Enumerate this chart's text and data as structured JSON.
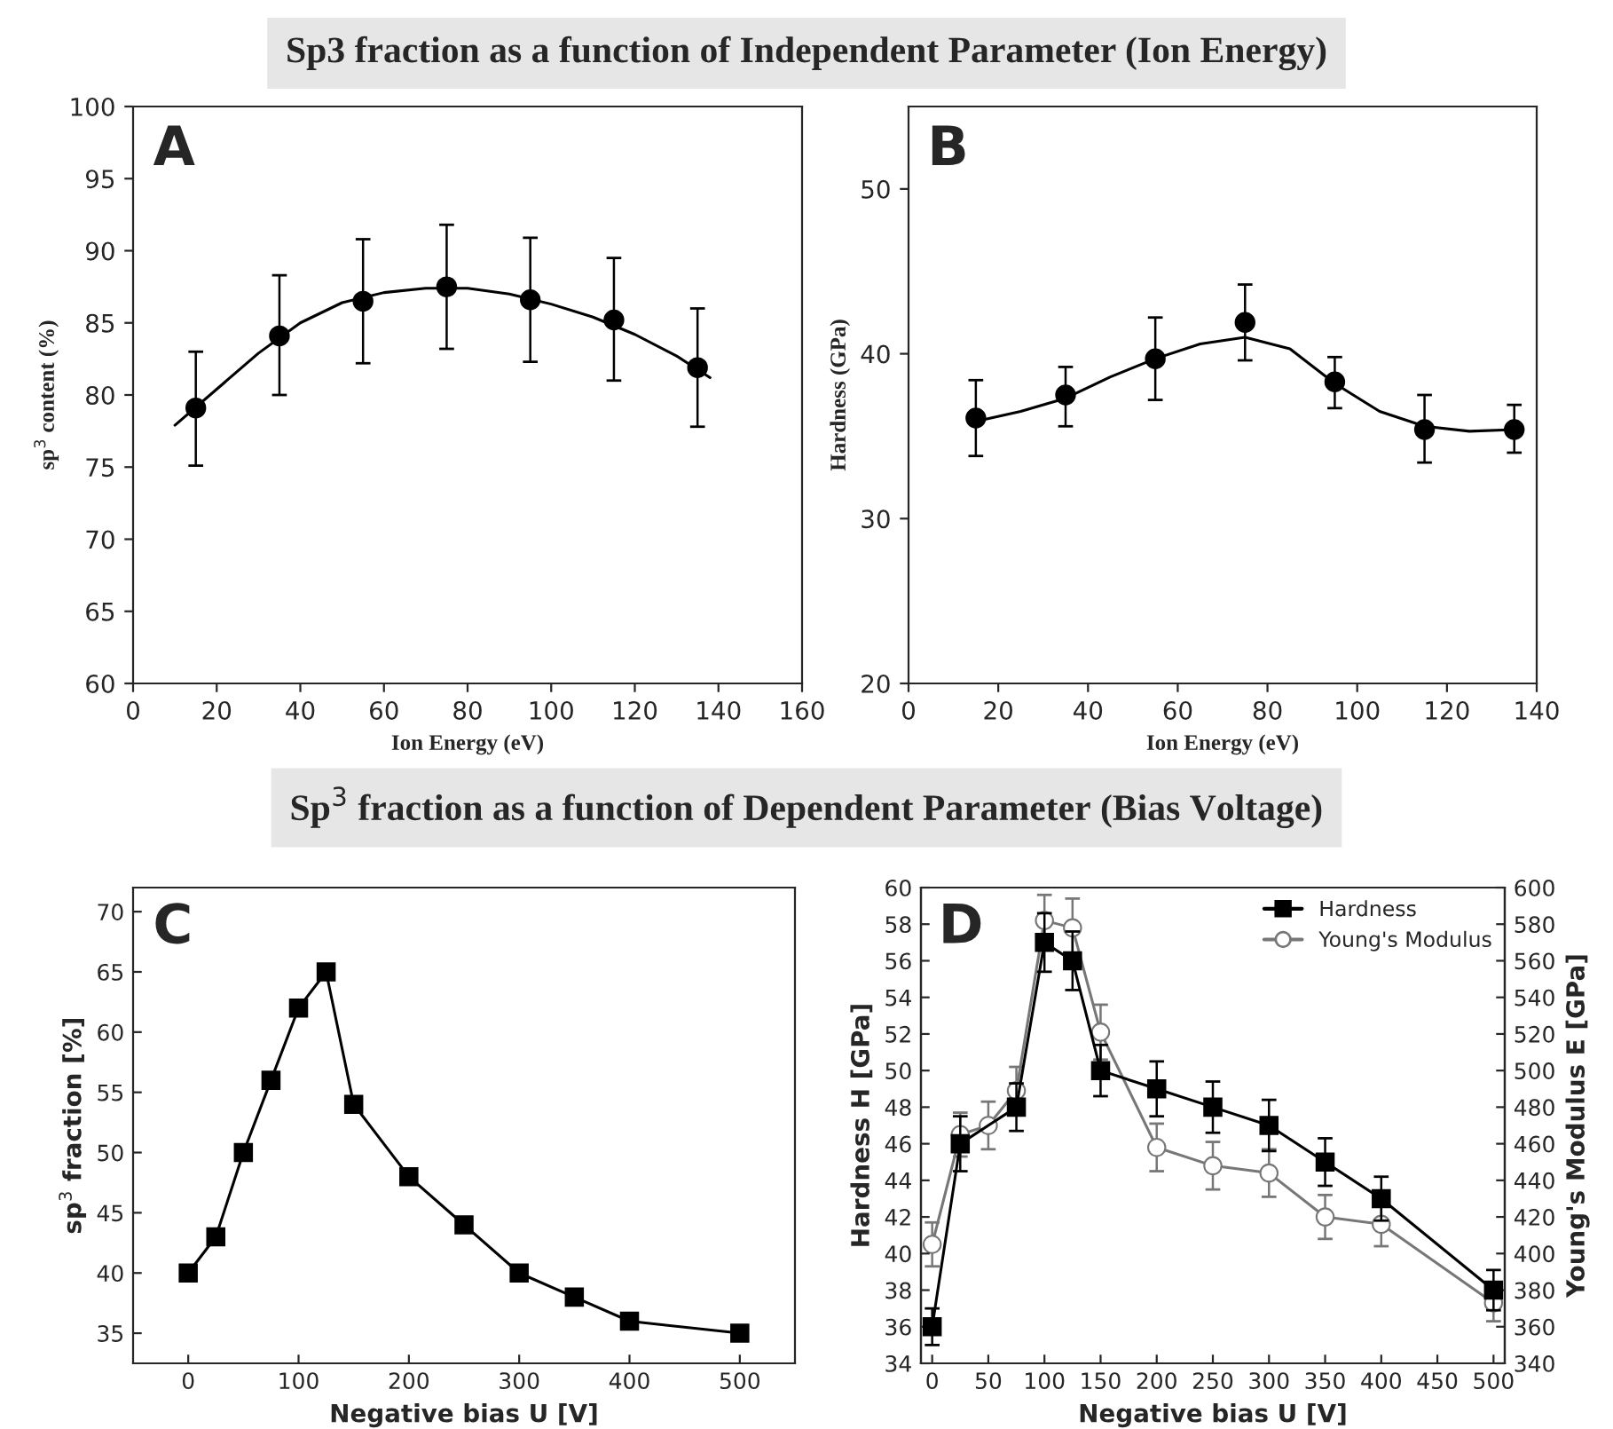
{
  "chart_data": [
    {
      "type": "scatter",
      "title": "Sp3 fraction as a function of Independent Parameter (Ion Energy)",
      "xlabel": "Ion Energy (eV)",
      "ylabel": "sp$^{3}$ content (%)",
      "xlim": [
        0,
        160
      ],
      "ylim": [
        60,
        100
      ],
      "xticks": [
        0,
        20,
        40,
        60,
        80,
        100,
        120,
        140,
        160
      ],
      "yticks": [
        60,
        65,
        70,
        75,
        80,
        85,
        90,
        95,
        100
      ],
      "annotations": [
        "A"
      ],
      "series": [
        {
          "type": "scatter",
          "color": "#000000",
          "marker": "circle",
          "x": [
            15,
            35,
            55,
            75,
            95,
            115,
            135
          ],
          "values": [
            79.1,
            84.1,
            86.5,
            87.5,
            86.6,
            85.2,
            81.9
          ],
          "errors": [
            [
              75.1,
              83.0
            ],
            [
              80.0,
              88.3
            ],
            [
              82.2,
              90.8
            ],
            [
              83.2,
              91.8
            ],
            [
              82.3,
              90.9
            ],
            [
              81.0,
              89.5
            ],
            [
              77.8,
              86.0
            ]
          ]
        },
        {
          "type": "line",
          "color": "#000000",
          "marker": "none",
          "x": [
            10,
            20,
            30,
            40,
            50,
            60,
            70,
            80,
            90,
            100,
            110,
            120,
            130,
            138
          ],
          "values": [
            77.9,
            80.4,
            82.9,
            85.0,
            86.4,
            87.1,
            87.4,
            87.4,
            87.0,
            86.3,
            85.4,
            84.2,
            82.7,
            81.2
          ]
        }
      ]
    },
    {
      "type": "scatter",
      "xlabel": "Ion Energy (eV)",
      "ylabel": "Hardness (GPa)",
      "xlim": [
        0,
        140
      ],
      "ylim": [
        20,
        55
      ],
      "xticks": [
        0,
        20,
        40,
        60,
        80,
        100,
        120,
        140
      ],
      "yticks": [
        20,
        30,
        40,
        50
      ],
      "annotations": [
        "B"
      ],
      "series": [
        {
          "type": "scatter",
          "color": "#000000",
          "marker": "circle",
          "x": [
            15,
            35,
            55,
            75,
            95,
            115,
            135
          ],
          "values": [
            36.1,
            37.5,
            39.7,
            41.9,
            38.3,
            35.4,
            35.4
          ],
          "errors": [
            [
              33.8,
              38.4
            ],
            [
              35.6,
              39.2
            ],
            [
              37.2,
              42.2
            ],
            [
              39.6,
              44.2
            ],
            [
              36.7,
              39.8
            ],
            [
              33.4,
              37.5
            ],
            [
              34.0,
              36.9
            ]
          ]
        },
        {
          "type": "line",
          "color": "#000000",
          "marker": "none",
          "x": [
            15,
            25,
            35,
            45,
            55,
            65,
            75,
            85,
            95,
            105,
            115,
            125,
            135
          ],
          "values": [
            35.9,
            36.5,
            37.3,
            38.6,
            39.7,
            40.6,
            41.0,
            40.3,
            38.2,
            36.5,
            35.6,
            35.3,
            35.4
          ]
        }
      ]
    },
    {
      "type": "line",
      "title": "Sp$^{3}$ fraction as a function of Dependent Parameter (Bias Voltage)",
      "xlabel": "Negative bias U [V]",
      "ylabel": "sp$^{3}$ fraction [%]",
      "xlim": [
        -50,
        550
      ],
      "ylim": [
        32.5,
        72
      ],
      "xticks": [
        0,
        100,
        200,
        300,
        400,
        500
      ],
      "yticks": [
        35,
        40,
        45,
        50,
        55,
        60,
        65,
        70
      ],
      "annotations": [
        "C"
      ],
      "marker": "square",
      "series": [
        {
          "color": "#000000",
          "x": [
            0,
            25,
            50,
            75,
            100,
            125,
            150,
            200,
            250,
            300,
            350,
            400,
            500
          ],
          "values": [
            40,
            43,
            50,
            56,
            62,
            65,
            54,
            48,
            44,
            40,
            38,
            36,
            35
          ]
        }
      ]
    },
    {
      "type": "line",
      "xlabel": "Negative bias U [V]",
      "ylabel": "Hardness H [GPa]",
      "y2label": "Young's Modulus E [GPa]",
      "xlim": [
        -10,
        510
      ],
      "ylim": [
        34,
        60
      ],
      "y2lim": [
        340,
        600
      ],
      "xticks": [
        0,
        50,
        100,
        150,
        200,
        250,
        300,
        350,
        400,
        450,
        500
      ],
      "yticks": [
        34,
        36,
        38,
        40,
        42,
        44,
        46,
        48,
        50,
        52,
        54,
        56,
        58,
        60
      ],
      "y2ticks": [
        340,
        360,
        380,
        400,
        420,
        440,
        460,
        480,
        500,
        520,
        540,
        560,
        580,
        600
      ],
      "annotations": [
        "D"
      ],
      "legend": "top right",
      "series": [
        {
          "name": "Hardness",
          "color": "#000000",
          "marker": "square",
          "x": [
            0,
            25,
            75,
            100,
            125,
            150,
            200,
            250,
            300,
            350,
            400,
            500
          ],
          "values": [
            36,
            46,
            48,
            57,
            56,
            50,
            49,
            48,
            47,
            45,
            43,
            38
          ],
          "errors": [
            1.0,
            1.5,
            1.3,
            1.6,
            1.6,
            1.4,
            1.5,
            1.4,
            1.4,
            1.3,
            1.2,
            1.1
          ]
        },
        {
          "name": "Young's Modulus",
          "axis": "y2",
          "color": "#777777",
          "marker": "circle",
          "x": [
            0,
            25,
            50,
            75,
            100,
            125,
            150,
            200,
            250,
            300,
            350,
            400,
            500
          ],
          "values": [
            405,
            465,
            470,
            489,
            582,
            578,
            521,
            458,
            448,
            444,
            420,
            416,
            373
          ],
          "errors": [
            12,
            12,
            13,
            13,
            14,
            16,
            15,
            13,
            13,
            13,
            12,
            12,
            10
          ]
        }
      ]
    }
  ]
}
